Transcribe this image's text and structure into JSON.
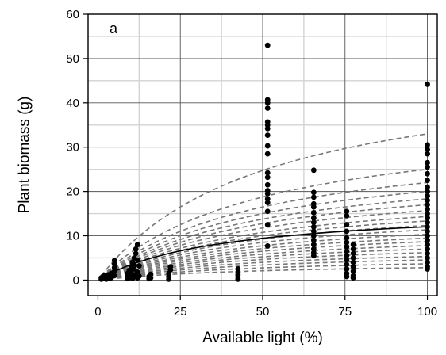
{
  "chart_data": {
    "type": "scatter",
    "panel_label": "a",
    "xlabel": "Available light (%)",
    "ylabel": "Plant biomass (g)",
    "xlim": [
      -3,
      103
    ],
    "ylim": [
      -3.5,
      60
    ],
    "x_ticks": [
      0,
      25,
      50,
      75,
      100
    ],
    "y_ticks": [
      0,
      10,
      20,
      30,
      40,
      50,
      60
    ],
    "x_tick_labels": [
      "0",
      "25",
      "50",
      "75",
      "100"
    ],
    "y_tick_labels": [
      "0",
      "10",
      "20",
      "30",
      "40",
      "50",
      "60"
    ],
    "grid": true,
    "minor_grid": true,
    "legend": "none",
    "colors": {
      "points": "#000000",
      "mean_curve": "#000000",
      "group_curves": "#777777",
      "major_grid": "#555555",
      "minor_grid": "#d3d3d3"
    },
    "mean_curve_asymptote": 16.6,
    "mean_curve_k": 38,
    "group_curve_asymptotes": [
      49.5,
      37.5,
      33,
      30,
      27.5,
      25.5,
      23.5,
      21.5,
      20,
      18.5,
      17,
      15.5,
      14.2,
      13,
      11.7,
      10.5,
      9.3,
      8,
      6.8,
      5.5,
      4.2
    ],
    "group_curve_k": 50,
    "points": [
      {
        "x": 1,
        "y": 0.2
      },
      {
        "x": 1,
        "y": 0.5
      },
      {
        "x": 1.5,
        "y": 0.3
      },
      {
        "x": 1.5,
        "y": 0.8
      },
      {
        "x": 2,
        "y": 0.4
      },
      {
        "x": 2,
        "y": 1.0
      },
      {
        "x": 2.5,
        "y": 0.2
      },
      {
        "x": 3,
        "y": 0.6
      },
      {
        "x": 3,
        "y": 1.2
      },
      {
        "x": 3.5,
        "y": 0.3
      },
      {
        "x": 4,
        "y": 0.5
      },
      {
        "x": 4,
        "y": 1.5
      },
      {
        "x": 5,
        "y": 1.0
      },
      {
        "x": 5,
        "y": 2.0
      },
      {
        "x": 5,
        "y": 2.8
      },
      {
        "x": 5,
        "y": 3.6
      },
      {
        "x": 5,
        "y": 4.4
      },
      {
        "x": 9,
        "y": 0.3
      },
      {
        "x": 9,
        "y": 0.8
      },
      {
        "x": 9,
        "y": 1.5
      },
      {
        "x": 9.5,
        "y": 2.2
      },
      {
        "x": 9.5,
        "y": 0.5
      },
      {
        "x": 10,
        "y": 1.0
      },
      {
        "x": 10,
        "y": 2.0
      },
      {
        "x": 10,
        "y": 3.0
      },
      {
        "x": 10.5,
        "y": 4.0
      },
      {
        "x": 10.5,
        "y": 0.4
      },
      {
        "x": 11,
        "y": 0.7
      },
      {
        "x": 11,
        "y": 1.2
      },
      {
        "x": 11,
        "y": 2.5
      },
      {
        "x": 11,
        "y": 3.5
      },
      {
        "x": 11,
        "y": 5.0
      },
      {
        "x": 11.5,
        "y": 6.0
      },
      {
        "x": 11.5,
        "y": 7.0
      },
      {
        "x": 12,
        "y": 8.0
      },
      {
        "x": 12,
        "y": 0.5
      },
      {
        "x": 12,
        "y": 1.8
      },
      {
        "x": 12,
        "y": 4.5
      },
      {
        "x": 12.5,
        "y": 0.9
      },
      {
        "x": 12.5,
        "y": 3.2
      },
      {
        "x": 15.5,
        "y": 0.3
      },
      {
        "x": 15.5,
        "y": 0.8
      },
      {
        "x": 16,
        "y": 1.3
      },
      {
        "x": 16,
        "y": 0.5
      },
      {
        "x": 21.5,
        "y": 0.2
      },
      {
        "x": 21.5,
        "y": 0.8
      },
      {
        "x": 21.5,
        "y": 1.5
      },
      {
        "x": 22,
        "y": 2.3
      },
      {
        "x": 22,
        "y": 3.0
      },
      {
        "x": 42.5,
        "y": 0.2
      },
      {
        "x": 42.5,
        "y": 0.7
      },
      {
        "x": 42.5,
        "y": 1.2
      },
      {
        "x": 42.5,
        "y": 1.8
      },
      {
        "x": 42.5,
        "y": 2.5
      },
      {
        "x": 51.5,
        "y": 53.0
      },
      {
        "x": 51.5,
        "y": 40.7
      },
      {
        "x": 51.5,
        "y": 40.0
      },
      {
        "x": 51.5,
        "y": 38.8
      },
      {
        "x": 51.5,
        "y": 35.7
      },
      {
        "x": 51.5,
        "y": 35.0
      },
      {
        "x": 51.5,
        "y": 34.2
      },
      {
        "x": 51.5,
        "y": 32.7
      },
      {
        "x": 51.5,
        "y": 30.3
      },
      {
        "x": 51.5,
        "y": 28.5
      },
      {
        "x": 51.5,
        "y": 24.2
      },
      {
        "x": 51.5,
        "y": 23.2
      },
      {
        "x": 51.5,
        "y": 21.5
      },
      {
        "x": 51.5,
        "y": 20.2
      },
      {
        "x": 51.5,
        "y": 19.5
      },
      {
        "x": 51.5,
        "y": 18.3
      },
      {
        "x": 51.5,
        "y": 17.5
      },
      {
        "x": 51.5,
        "y": 15.5
      },
      {
        "x": 51.5,
        "y": 12.5
      },
      {
        "x": 51.5,
        "y": 7.7
      },
      {
        "x": 65.5,
        "y": 24.8
      },
      {
        "x": 65.5,
        "y": 19.8
      },
      {
        "x": 65.5,
        "y": 18.7
      },
      {
        "x": 65.5,
        "y": 17.2
      },
      {
        "x": 65.5,
        "y": 16.5
      },
      {
        "x": 65.5,
        "y": 15.2
      },
      {
        "x": 65.5,
        "y": 14.0
      },
      {
        "x": 65.5,
        "y": 13.0
      },
      {
        "x": 65.5,
        "y": 12.0
      },
      {
        "x": 65.5,
        "y": 11.0
      },
      {
        "x": 65.5,
        "y": 10.0
      },
      {
        "x": 65.5,
        "y": 9.0
      },
      {
        "x": 65.5,
        "y": 8.0
      },
      {
        "x": 65.5,
        "y": 7.0
      },
      {
        "x": 65.5,
        "y": 6.2
      },
      {
        "x": 65.5,
        "y": 5.5
      },
      {
        "x": 75.5,
        "y": 15.5
      },
      {
        "x": 75.5,
        "y": 14.5
      },
      {
        "x": 75.5,
        "y": 12.5
      },
      {
        "x": 75.5,
        "y": 11.0
      },
      {
        "x": 75.5,
        "y": 9.5
      },
      {
        "x": 75.5,
        "y": 8.5
      },
      {
        "x": 75.5,
        "y": 7.5
      },
      {
        "x": 75.5,
        "y": 6.5
      },
      {
        "x": 75.5,
        "y": 5.5
      },
      {
        "x": 75.5,
        "y": 4.5
      },
      {
        "x": 75.5,
        "y": 3.5
      },
      {
        "x": 75.5,
        "y": 2.5
      },
      {
        "x": 75.5,
        "y": 1.5
      },
      {
        "x": 75.5,
        "y": 0.8
      },
      {
        "x": 77.5,
        "y": 8.0
      },
      {
        "x": 77.5,
        "y": 7.0
      },
      {
        "x": 77.5,
        "y": 6.0
      },
      {
        "x": 77.5,
        "y": 5.0
      },
      {
        "x": 77.5,
        "y": 4.0
      },
      {
        "x": 77.5,
        "y": 3.0
      },
      {
        "x": 77.5,
        "y": 2.0
      },
      {
        "x": 77.5,
        "y": 1.0
      },
      {
        "x": 77.5,
        "y": 0.5
      },
      {
        "x": 100,
        "y": 44.2
      },
      {
        "x": 100,
        "y": 30.5
      },
      {
        "x": 100,
        "y": 29.5
      },
      {
        "x": 100,
        "y": 28.5
      },
      {
        "x": 100,
        "y": 26.5
      },
      {
        "x": 100,
        "y": 25.5
      },
      {
        "x": 100,
        "y": 24.0
      },
      {
        "x": 100,
        "y": 22.5
      },
      {
        "x": 100,
        "y": 21.0
      },
      {
        "x": 100,
        "y": 20.0
      },
      {
        "x": 100,
        "y": 19.0
      },
      {
        "x": 100,
        "y": 18.0
      },
      {
        "x": 100,
        "y": 17.0
      },
      {
        "x": 100,
        "y": 16.0
      },
      {
        "x": 100,
        "y": 15.0
      },
      {
        "x": 100,
        "y": 14.0
      },
      {
        "x": 100,
        "y": 13.0
      },
      {
        "x": 100,
        "y": 12.0
      },
      {
        "x": 100,
        "y": 11.0
      },
      {
        "x": 100,
        "y": 10.0
      },
      {
        "x": 100,
        "y": 9.0
      },
      {
        "x": 100,
        "y": 8.0
      },
      {
        "x": 100,
        "y": 7.0
      },
      {
        "x": 100,
        "y": 6.0
      },
      {
        "x": 100,
        "y": 5.0
      },
      {
        "x": 100,
        "y": 4.0
      },
      {
        "x": 100,
        "y": 3.0
      },
      {
        "x": 100,
        "y": 2.5
      }
    ]
  }
}
